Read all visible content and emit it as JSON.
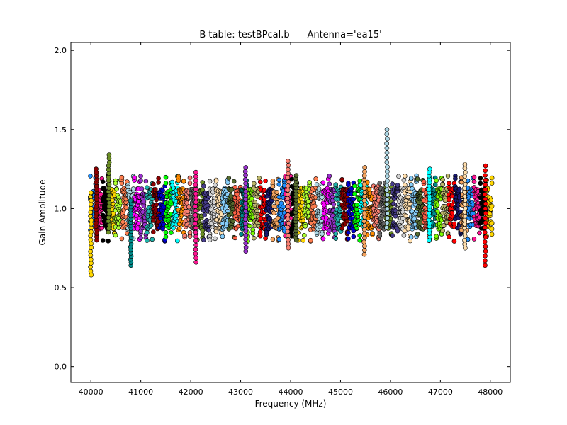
{
  "chart_data": {
    "type": "scatter",
    "title": "B table: testBPcal.b      Antenna='ea15'",
    "xlabel": "Frequency (MHz)",
    "ylabel": "Gain Amplitude",
    "xlim": [
      39600,
      48400
    ],
    "ylim": [
      -0.1,
      2.05
    ],
    "xticks": [
      40000,
      41000,
      42000,
      43000,
      44000,
      45000,
      46000,
      47000,
      48000
    ],
    "xtick_labels": [
      "40000",
      "41000",
      "42000",
      "43000",
      "44000",
      "45000",
      "46000",
      "47000",
      "48000"
    ],
    "yticks": [
      0.0,
      0.5,
      1.0,
      1.5,
      2.0
    ],
    "ytick_labels": [
      "0.0",
      "0.5",
      "1.0",
      "1.5",
      "2.0"
    ],
    "grid": false,
    "legend": "none",
    "spw": {
      "count": 64,
      "start_mhz": 39990,
      "width_mhz": 126,
      "baseline": 1.0,
      "typical_spread": 0.13
    },
    "edge_spikes": [
      {
        "x": 40000,
        "min": 0.58,
        "max": 1.1
      },
      {
        "x": 40110,
        "min": 0.8,
        "max": 1.25
      },
      {
        "x": 40360,
        "min": 0.85,
        "max": 1.34
      },
      {
        "x": 40800,
        "min": 0.64,
        "max": 1.05
      },
      {
        "x": 42100,
        "min": 0.66,
        "max": 1.23
      },
      {
        "x": 43100,
        "min": 0.73,
        "max": 1.26
      },
      {
        "x": 43950,
        "min": 0.75,
        "max": 1.3
      },
      {
        "x": 44110,
        "min": 0.8,
        "max": 1.21
      },
      {
        "x": 45480,
        "min": 0.71,
        "max": 1.26
      },
      {
        "x": 45930,
        "min": 0.88,
        "max": 1.5
      },
      {
        "x": 46780,
        "min": 0.8,
        "max": 1.25
      },
      {
        "x": 47490,
        "min": 0.75,
        "max": 1.28
      },
      {
        "x": 47900,
        "min": 0.64,
        "max": 1.27
      }
    ],
    "colors": [
      "#1f8fff",
      "#ff1493",
      "#000000",
      "#ffd700",
      "#adff2f",
      "#ff7f50",
      "#add8e6",
      "#ff00ff",
      "#9932cc",
      "#20b2aa",
      "#8b0000",
      "#0000cd",
      "#00ff00",
      "#00ffff",
      "#ff8c00",
      "#fa8072",
      "#696969",
      "#6b8e23",
      "#483d8b",
      "#d3d3d3",
      "#ffdead",
      "#87cefa",
      "#556b2f",
      "#ff6347",
      "#008b8b",
      "#7cfc00",
      "#bdb76b",
      "#ff0000",
      "#191970",
      "#f4a460"
    ]
  }
}
